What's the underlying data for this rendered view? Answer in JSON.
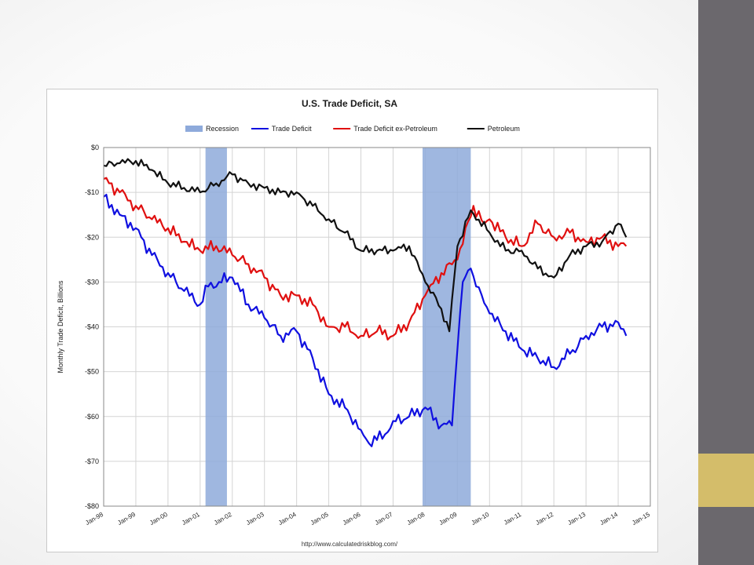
{
  "slide": {
    "colors": {
      "sidebar": "#6b686d",
      "accent": "#d4bd6a",
      "background": "#ffffff"
    }
  },
  "chart_data": {
    "type": "line",
    "title": "U.S. Trade Deficit, SA",
    "ylabel": "Monthly Trade Deficit, Billions",
    "xlabel": "",
    "source": "http://www.calculatedriskblog.com/",
    "ylim": [
      -80,
      0
    ],
    "xlim": [
      "Jan-98",
      "Jan-15"
    ],
    "grid": true,
    "legend_position": "top",
    "y_ticks": [
      "$0",
      "-$10",
      "-$20",
      "-$30",
      "-$40",
      "-$50",
      "-$60",
      "-$70",
      "-$80"
    ],
    "x_ticks": [
      "Jan-98",
      "Jan-99",
      "Jan-00",
      "Jan-01",
      "Jan-02",
      "Jan-03",
      "Jan-04",
      "Jan-05",
      "Jan-06",
      "Jan-07",
      "Jan-08",
      "Jan-09",
      "Jan-10",
      "Jan-11",
      "Jan-12",
      "Jan-13",
      "Jan-14",
      "Jan-15"
    ],
    "recessions": [
      {
        "start": "Mar-01",
        "end": "Nov-01"
      },
      {
        "start": "Dec-07",
        "end": "Jun-09"
      }
    ],
    "legend": [
      {
        "label": "Recession",
        "color": "#8eaadb",
        "kind": "box"
      },
      {
        "label": "Trade Deficit",
        "color": "#1010e0",
        "kind": "line"
      },
      {
        "label": "Trade Deficit ex-Petroleum",
        "color": "#e01010",
        "kind": "line"
      },
      {
        "label": "Petroleum",
        "color": "#111111",
        "kind": "line"
      }
    ],
    "series": [
      {
        "name": "Trade Deficit",
        "color": "#1010e0",
        "points": [
          [
            "Jan-98",
            -11
          ],
          [
            "Jul-98",
            -15
          ],
          [
            "Jan-99",
            -18
          ],
          [
            "Jul-99",
            -24
          ],
          [
            "Jan-00",
            -28
          ],
          [
            "Jul-00",
            -32
          ],
          [
            "Jan-01",
            -35
          ],
          [
            "Apr-01",
            -31
          ],
          [
            "Aug-01",
            -30
          ],
          [
            "Jan-02",
            -29
          ],
          [
            "Jul-02",
            -35
          ],
          [
            "Jan-03",
            -38
          ],
          [
            "Jul-03",
            -42
          ],
          [
            "Jan-04",
            -41
          ],
          [
            "Jul-04",
            -47
          ],
          [
            "Jan-05",
            -55
          ],
          [
            "Jul-05",
            -58
          ],
          [
            "Jan-06",
            -63
          ],
          [
            "Apr-06",
            -66
          ],
          [
            "Oct-06",
            -64
          ],
          [
            "Jan-07",
            -61
          ],
          [
            "Jul-07",
            -60
          ],
          [
            "Jan-08",
            -58
          ],
          [
            "Jul-08",
            -62
          ],
          [
            "Nov-08",
            -62
          ],
          [
            "Jan-09",
            -45
          ],
          [
            "Mar-09",
            -30
          ],
          [
            "Jun-09",
            -27
          ],
          [
            "Aug-09",
            -31
          ],
          [
            "Jan-10",
            -37
          ],
          [
            "Jul-10",
            -41
          ],
          [
            "Jan-11",
            -45
          ],
          [
            "Jul-11",
            -47
          ],
          [
            "Jan-12",
            -49
          ],
          [
            "Jul-12",
            -46
          ],
          [
            "Jan-13",
            -42
          ],
          [
            "Jul-13",
            -40
          ],
          [
            "Jan-14",
            -39
          ],
          [
            "Apr-14",
            -42
          ]
        ]
      },
      {
        "name": "Trade Deficit ex-Petroleum",
        "color": "#e01010",
        "points": [
          [
            "Jan-98",
            -7
          ],
          [
            "Jul-98",
            -10
          ],
          [
            "Jan-99",
            -13
          ],
          [
            "Jul-99",
            -16
          ],
          [
            "Jan-00",
            -18
          ],
          [
            "Jul-00",
            -21
          ],
          [
            "Jan-01",
            -23
          ],
          [
            "Jul-01",
            -22
          ],
          [
            "Jan-02",
            -24
          ],
          [
            "Jul-02",
            -26
          ],
          [
            "Jan-03",
            -29
          ],
          [
            "Jul-03",
            -33
          ],
          [
            "Jan-04",
            -33
          ],
          [
            "Jul-04",
            -35
          ],
          [
            "Jan-05",
            -40
          ],
          [
            "Jul-05",
            -40
          ],
          [
            "Jan-06",
            -42
          ],
          [
            "Jul-06",
            -41
          ],
          [
            "Jan-07",
            -42
          ],
          [
            "Jul-07",
            -39
          ],
          [
            "Jan-08",
            -33
          ],
          [
            "Jul-08",
            -28
          ],
          [
            "Jan-09",
            -25
          ],
          [
            "Jul-09",
            -13
          ],
          [
            "Nov-09",
            -17
          ],
          [
            "Jan-10",
            -16
          ],
          [
            "Jul-10",
            -20
          ],
          [
            "Jan-11",
            -22
          ],
          [
            "Jul-11",
            -17
          ],
          [
            "Jan-12",
            -20
          ],
          [
            "Jul-12",
            -19
          ],
          [
            "Jan-13",
            -21
          ],
          [
            "Jul-13",
            -20
          ],
          [
            "Jan-14",
            -22
          ],
          [
            "Apr-14",
            -22
          ]
        ]
      },
      {
        "name": "Petroleum",
        "color": "#111111",
        "points": [
          [
            "Jan-98",
            -4
          ],
          [
            "Jul-98",
            -3.5
          ],
          [
            "Jan-99",
            -3
          ],
          [
            "Jul-99",
            -5
          ],
          [
            "Jan-00",
            -8
          ],
          [
            "Jul-00",
            -9
          ],
          [
            "Jan-01",
            -10
          ],
          [
            "Jul-01",
            -8
          ],
          [
            "Jan-02",
            -6
          ],
          [
            "Jul-02",
            -8
          ],
          [
            "Jan-03",
            -9
          ],
          [
            "Jul-03",
            -10
          ],
          [
            "Jan-04",
            -10
          ],
          [
            "Jul-04",
            -13
          ],
          [
            "Jan-05",
            -16
          ],
          [
            "Jul-05",
            -19
          ],
          [
            "Jan-06",
            -23
          ],
          [
            "Jul-06",
            -23
          ],
          [
            "Jan-07",
            -23
          ],
          [
            "Jul-07",
            -22
          ],
          [
            "Jan-08",
            -30
          ],
          [
            "Jul-08",
            -36
          ],
          [
            "Oct-08",
            -41
          ],
          [
            "Jan-09",
            -22
          ],
          [
            "Jun-09",
            -14
          ],
          [
            "Jan-10",
            -19
          ],
          [
            "Jul-10",
            -23
          ],
          [
            "Jan-11",
            -23
          ],
          [
            "Jul-11",
            -27
          ],
          [
            "Jan-12",
            -29
          ],
          [
            "Jul-12",
            -24
          ],
          [
            "Jan-13",
            -22
          ],
          [
            "Jul-13",
            -21
          ],
          [
            "Jan-14",
            -17
          ],
          [
            "Apr-14",
            -20
          ]
        ]
      }
    ]
  }
}
